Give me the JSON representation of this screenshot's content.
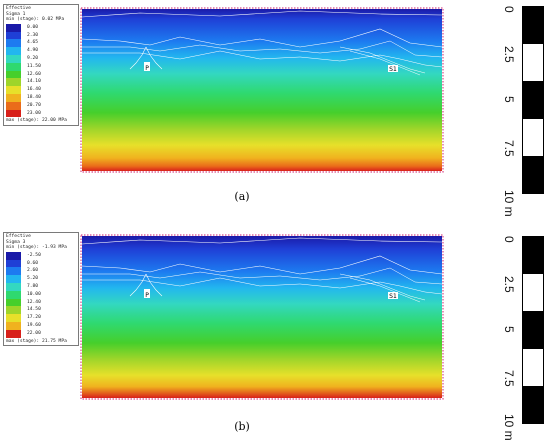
{
  "panels": [
    {
      "caption": "(a)",
      "legend": {
        "header_line1": "Effective",
        "header_line2": "Sigma 1",
        "min_line": "min (stage): 0.02 MPa",
        "max_line": "max (stage): 22.00 MPa",
        "items": [
          {
            "label": "0.00",
            "color": "#1a1aa8"
          },
          {
            "label": "2.30",
            "color": "#1f3fd6"
          },
          {
            "label": "4.65",
            "color": "#1d7bf0"
          },
          {
            "label": "4.90",
            "color": "#22b6ef"
          },
          {
            "label": "9.20",
            "color": "#33d8c0"
          },
          {
            "label": "11.50",
            "color": "#2fd96f"
          },
          {
            "label": "12.60",
            "color": "#46cf2b"
          },
          {
            "label": "14.10",
            "color": "#9ed52a"
          },
          {
            "label": "16.40",
            "color": "#e7e02a"
          },
          {
            "label": "18.40",
            "color": "#f0b21f"
          },
          {
            "label": "20.70",
            "color": "#ea6c1a"
          },
          {
            "label": "23.00",
            "color": "#d8201a"
          }
        ]
      },
      "markers": [
        "P",
        "S1"
      ]
    },
    {
      "caption": "(b)",
      "legend": {
        "header_line1": "Effective",
        "header_line2": "Sigma 3",
        "min_line": "min (stage): -1.93 MPa",
        "max_line": "max (stage): 21.75 MPa",
        "items": [
          {
            "label": "-2.50",
            "color": "#1a1aa8"
          },
          {
            "label": "0.60",
            "color": "#1f3fd6"
          },
          {
            "label": "2.60",
            "color": "#1d7bf0"
          },
          {
            "label": "5.20",
            "color": "#22b6ef"
          },
          {
            "label": "7.80",
            "color": "#33d8c0"
          },
          {
            "label": "10.00",
            "color": "#2fd96f"
          },
          {
            "label": "12.40",
            "color": "#46cf2b"
          },
          {
            "label": "14.50",
            "color": "#9ed52a"
          },
          {
            "label": "17.20",
            "color": "#e7e02a"
          },
          {
            "label": "19.60",
            "color": "#f0b21f"
          },
          {
            "label": "22.00",
            "color": "#d8201a"
          }
        ]
      },
      "markers": [
        "P",
        "S1"
      ]
    }
  ],
  "scale": {
    "ticks": [
      "0",
      "2.5",
      "5",
      "7.5",
      "10 m"
    ]
  },
  "colors": {
    "gradient": [
      "#1a1aa8",
      "#1f3fd6",
      "#1d7bf0",
      "#22b6ef",
      "#33d8c0",
      "#2fd96f",
      "#46cf2b",
      "#9ed52a",
      "#e7e02a",
      "#f0b21f",
      "#ea6c1a",
      "#d8201a"
    ],
    "frame_markers": "#d84a8a"
  }
}
